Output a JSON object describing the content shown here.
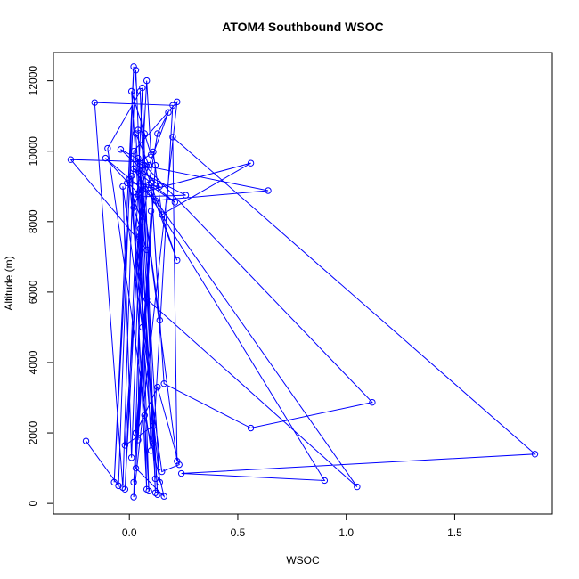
{
  "chart_data": {
    "type": "line",
    "title": "ATOM4 Southbound WSOC",
    "xlabel": "WSOC",
    "ylabel": "Altitude (m)",
    "xlim": [
      -0.35,
      1.95
    ],
    "ylim": [
      -300,
      12800
    ],
    "x_ticks": [
      0.0,
      0.5,
      1.0,
      1.5
    ],
    "x_tick_labels": [
      "0.0",
      "0.5",
      "1.0",
      "1.5"
    ],
    "y_ticks": [
      0,
      2000,
      4000,
      6000,
      8000,
      10000,
      12000
    ],
    "y_tick_labels": [
      "0",
      "2000",
      "4000",
      "6000",
      "8000",
      "10000",
      "12000"
    ],
    "grid": false,
    "legend": "none",
    "series": [
      {
        "color": "#0000ff",
        "marker": "circle-open",
        "x": [
          -0.2,
          -0.05,
          0.02,
          -0.07,
          0.03,
          0.1,
          -0.1,
          0.05,
          0.12,
          0.06,
          -0.02,
          0.08,
          0.1,
          0.01,
          0.13,
          0.04,
          0.07,
          0.02,
          0.22,
          0.02,
          -0.03,
          -0.16,
          0.2,
          0.11,
          0.03,
          0.09,
          -0.04,
          0.14,
          -0.01,
          0.06,
          0.13,
          0.18,
          0.02,
          0.08,
          -0.27,
          0.05,
          0.11,
          0.15,
          0.56,
          0.04,
          -0.11,
          0.12,
          0.64,
          0.06,
          0.03,
          0.26,
          0.02,
          0.21,
          0.09,
          0.22,
          0.07,
          1.12,
          0.56,
          0.16,
          0.1,
          0.14,
          0.04,
          0.22,
          0.2,
          1.87,
          0.24,
          0.9,
          0.02,
          1.05,
          0.08,
          0.03,
          0.13,
          0.23,
          0.15,
          0.06,
          -0.03,
          0.01,
          0.05,
          0.09,
          0.07,
          0.16,
          0.03,
          0.1,
          0.02,
          0.12,
          0.04,
          0.05,
          0.08,
          0.01,
          0.11,
          -0.02,
          0.06,
          0.14,
          0.0,
          0.12
        ],
        "y": [
          1770,
          500,
          12400,
          600,
          12300,
          1500,
          10080,
          11700,
          300,
          11800,
          400,
          12000,
          9900,
          11700,
          250,
          10600,
          10500,
          180,
          11400,
          10000,
          450,
          11380,
          11300,
          1700,
          10500,
          9600,
          10050,
          9000,
          9100,
          8000,
          10500,
          11100,
          8400,
          7200,
          9760,
          9700,
          9980,
          8200,
          9660,
          8800,
          9800,
          8600,
          8880,
          9600,
          8700,
          8750,
          9500,
          8550,
          9050,
          6900,
          9600,
          2870,
          2140,
          3400,
          9100,
          5200,
          9800,
          1200,
          10400,
          1400,
          850,
          650,
          9500,
          470,
          5800,
          2000,
          3300,
          1100,
          900,
          5000,
          9000,
          1300,
          7800,
          350,
          2500,
          200,
          1000,
          8300,
          600,
          9600,
          1800,
          7600,
          400,
          9300,
          2200,
          1650,
          8900,
          600,
          9200,
          700
        ]
      }
    ]
  }
}
